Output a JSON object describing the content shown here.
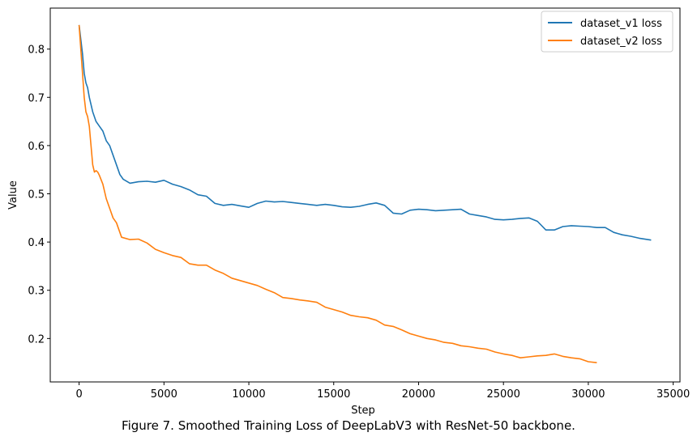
{
  "figure_caption": "Figure 7. Smoothed Training Loss of DeepLabV3 with ResNet-50 backbone.",
  "chart_data": {
    "type": "line",
    "title": "",
    "xlabel": "Step",
    "ylabel": "Value",
    "xlim": [
      -1700,
      35400
    ],
    "ylim": [
      0.11,
      0.885
    ],
    "xticks": [
      0,
      5000,
      10000,
      15000,
      20000,
      25000,
      30000,
      35000
    ],
    "xtick_labels": [
      "0",
      "5000",
      "10000",
      "15000",
      "20000",
      "25000",
      "30000",
      "35000"
    ],
    "yticks": [
      0.2,
      0.3,
      0.4,
      0.5,
      0.6,
      0.7,
      0.8
    ],
    "ytick_labels": [
      "0.2",
      "0.3",
      "0.4",
      "0.5",
      "0.6",
      "0.7",
      "0.8"
    ],
    "grid": false,
    "legend_position": "top-right",
    "series": [
      {
        "name": "dataset_v1 loss",
        "color": "#1f77b4",
        "points": [
          [
            0,
            0.85
          ],
          [
            100,
            0.82
          ],
          [
            200,
            0.79
          ],
          [
            300,
            0.75
          ],
          [
            400,
            0.73
          ],
          [
            500,
            0.72
          ],
          [
            600,
            0.7
          ],
          [
            800,
            0.67
          ],
          [
            1000,
            0.65
          ],
          [
            1200,
            0.64
          ],
          [
            1400,
            0.63
          ],
          [
            1600,
            0.61
          ],
          [
            1800,
            0.6
          ],
          [
            2000,
            0.58
          ],
          [
            2200,
            0.56
          ],
          [
            2400,
            0.54
          ],
          [
            2600,
            0.53
          ],
          [
            3000,
            0.522
          ],
          [
            3500,
            0.525
          ],
          [
            4000,
            0.526
          ],
          [
            4500,
            0.524
          ],
          [
            5000,
            0.528
          ],
          [
            5500,
            0.52
          ],
          [
            6000,
            0.515
          ],
          [
            6500,
            0.508
          ],
          [
            7000,
            0.498
          ],
          [
            7500,
            0.495
          ],
          [
            8000,
            0.48
          ],
          [
            8500,
            0.476
          ],
          [
            9000,
            0.478
          ],
          [
            9500,
            0.475
          ],
          [
            10000,
            0.472
          ],
          [
            10500,
            0.48
          ],
          [
            11000,
            0.485
          ],
          [
            11500,
            0.483
          ],
          [
            12000,
            0.484
          ],
          [
            12500,
            0.482
          ],
          [
            13000,
            0.48
          ],
          [
            13500,
            0.478
          ],
          [
            14000,
            0.476
          ],
          [
            14500,
            0.478
          ],
          [
            15000,
            0.476
          ],
          [
            15500,
            0.473
          ],
          [
            16000,
            0.472
          ],
          [
            16500,
            0.474
          ],
          [
            17000,
            0.478
          ],
          [
            17500,
            0.481
          ],
          [
            18000,
            0.476
          ],
          [
            18500,
            0.46
          ],
          [
            19000,
            0.458
          ],
          [
            19500,
            0.466
          ],
          [
            20000,
            0.468
          ],
          [
            20500,
            0.467
          ],
          [
            21000,
            0.465
          ],
          [
            21500,
            0.466
          ],
          [
            22000,
            0.467
          ],
          [
            22500,
            0.468
          ],
          [
            23000,
            0.458
          ],
          [
            23500,
            0.455
          ],
          [
            24000,
            0.452
          ],
          [
            24500,
            0.447
          ],
          [
            25000,
            0.446
          ],
          [
            25500,
            0.447
          ],
          [
            26000,
            0.449
          ],
          [
            26500,
            0.45
          ],
          [
            27000,
            0.443
          ],
          [
            27500,
            0.425
          ],
          [
            28000,
            0.425
          ],
          [
            28500,
            0.432
          ],
          [
            29000,
            0.434
          ],
          [
            29500,
            0.433
          ],
          [
            30000,
            0.432
          ],
          [
            30500,
            0.43
          ],
          [
            31000,
            0.43
          ],
          [
            31500,
            0.42
          ],
          [
            32000,
            0.415
          ],
          [
            32500,
            0.412
          ],
          [
            33000,
            0.408
          ],
          [
            33700,
            0.404
          ]
        ]
      },
      {
        "name": "dataset_v2 loss",
        "color": "#ff7f0e",
        "points": [
          [
            0,
            0.85
          ],
          [
            100,
            0.8
          ],
          [
            200,
            0.75
          ],
          [
            300,
            0.7
          ],
          [
            400,
            0.67
          ],
          [
            500,
            0.66
          ],
          [
            600,
            0.64
          ],
          [
            700,
            0.6
          ],
          [
            800,
            0.56
          ],
          [
            900,
            0.545
          ],
          [
            1000,
            0.548
          ],
          [
            1100,
            0.545
          ],
          [
            1200,
            0.538
          ],
          [
            1400,
            0.52
          ],
          [
            1600,
            0.49
          ],
          [
            1800,
            0.47
          ],
          [
            2000,
            0.45
          ],
          [
            2200,
            0.44
          ],
          [
            2500,
            0.41
          ],
          [
            3000,
            0.405
          ],
          [
            3500,
            0.406
          ],
          [
            4000,
            0.398
          ],
          [
            4500,
            0.385
          ],
          [
            5000,
            0.378
          ],
          [
            5500,
            0.372
          ],
          [
            6000,
            0.368
          ],
          [
            6500,
            0.355
          ],
          [
            7000,
            0.352
          ],
          [
            7500,
            0.352
          ],
          [
            8000,
            0.342
          ],
          [
            8500,
            0.335
          ],
          [
            9000,
            0.325
          ],
          [
            9500,
            0.32
          ],
          [
            10000,
            0.315
          ],
          [
            10500,
            0.31
          ],
          [
            11000,
            0.302
          ],
          [
            11500,
            0.295
          ],
          [
            12000,
            0.285
          ],
          [
            12500,
            0.283
          ],
          [
            13000,
            0.28
          ],
          [
            13500,
            0.278
          ],
          [
            14000,
            0.275
          ],
          [
            14500,
            0.265
          ],
          [
            15000,
            0.26
          ],
          [
            15500,
            0.255
          ],
          [
            16000,
            0.248
          ],
          [
            16500,
            0.245
          ],
          [
            17000,
            0.243
          ],
          [
            17500,
            0.238
          ],
          [
            18000,
            0.228
          ],
          [
            18500,
            0.225
          ],
          [
            19000,
            0.218
          ],
          [
            19500,
            0.21
          ],
          [
            20000,
            0.205
          ],
          [
            20500,
            0.2
          ],
          [
            21000,
            0.197
          ],
          [
            21500,
            0.192
          ],
          [
            22000,
            0.19
          ],
          [
            22500,
            0.185
          ],
          [
            23000,
            0.183
          ],
          [
            23500,
            0.18
          ],
          [
            24000,
            0.178
          ],
          [
            24500,
            0.172
          ],
          [
            25000,
            0.168
          ],
          [
            25500,
            0.165
          ],
          [
            26000,
            0.16
          ],
          [
            26500,
            0.162
          ],
          [
            27000,
            0.164
          ],
          [
            27500,
            0.165
          ],
          [
            28000,
            0.168
          ],
          [
            28500,
            0.163
          ],
          [
            29000,
            0.16
          ],
          [
            29500,
            0.158
          ],
          [
            30000,
            0.152
          ],
          [
            30500,
            0.15
          ]
        ]
      }
    ]
  }
}
